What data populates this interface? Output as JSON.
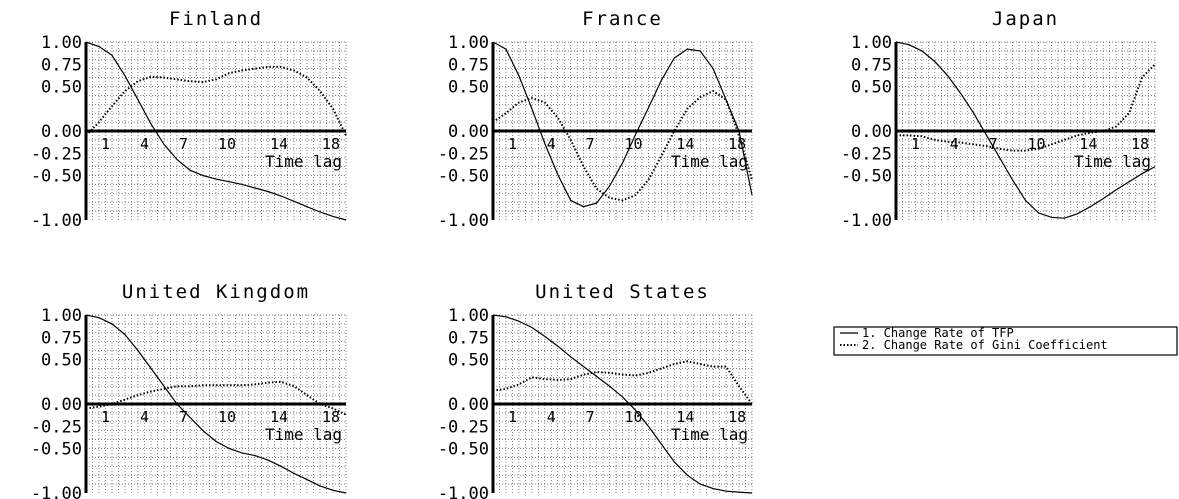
{
  "chart_data": [
    {
      "type": "line",
      "title": "Finland",
      "xlabel": "Time lag",
      "xticks": [
        "1",
        "4",
        "7",
        "10",
        "14",
        "18"
      ],
      "yticks": [
        "1.00",
        "0.75",
        "0.50",
        "0.00",
        "-0.25",
        "-0.50",
        "-1.00"
      ],
      "xlim": [
        0,
        20
      ],
      "ylim": [
        -1.0,
        1.0
      ],
      "grid": true,
      "x": [
        0,
        1,
        2,
        3,
        4,
        5,
        6,
        7,
        8,
        9,
        10,
        11,
        12,
        13,
        14,
        15,
        16,
        17,
        18,
        19,
        20
      ],
      "series": [
        {
          "name": "1. Change Rate of TFP",
          "style": "solid",
          "values": [
            1.0,
            0.95,
            0.85,
            0.62,
            0.35,
            0.08,
            -0.15,
            -0.32,
            -0.44,
            -0.5,
            -0.54,
            -0.57,
            -0.6,
            -0.64,
            -0.68,
            -0.73,
            -0.79,
            -0.85,
            -0.91,
            -0.96,
            -1.0
          ]
        },
        {
          "name": "2. Change Rate of Gini Coefficient",
          "style": "dotted",
          "values": [
            -0.05,
            0.1,
            0.28,
            0.45,
            0.56,
            0.61,
            0.6,
            0.58,
            0.56,
            0.55,
            0.58,
            0.65,
            0.68,
            0.7,
            0.72,
            0.72,
            0.68,
            0.6,
            0.45,
            0.25,
            -0.05
          ]
        }
      ]
    },
    {
      "type": "line",
      "title": "France",
      "xlabel": "Time lag",
      "xticks": [
        "1",
        "4",
        "7",
        "10",
        "14",
        "18"
      ],
      "yticks": [
        "1.00",
        "0.75",
        "0.50",
        "0.00",
        "-0.25",
        "-0.50",
        "-1.00"
      ],
      "xlim": [
        0,
        20
      ],
      "ylim": [
        -1.0,
        1.0
      ],
      "grid": true,
      "x": [
        0,
        1,
        2,
        3,
        4,
        5,
        6,
        7,
        8,
        9,
        10,
        11,
        12,
        13,
        14,
        15,
        16,
        17,
        18,
        19,
        20
      ],
      "series": [
        {
          "name": "1. Change Rate of TFP",
          "style": "solid",
          "values": [
            1.0,
            0.92,
            0.62,
            0.25,
            -0.14,
            -0.49,
            -0.78,
            -0.85,
            -0.81,
            -0.62,
            -0.36,
            -0.04,
            0.26,
            0.57,
            0.82,
            0.92,
            0.9,
            0.7,
            0.35,
            0.0,
            -0.72
          ]
        },
        {
          "name": "2. Change Rate of Gini Coefficient",
          "style": "dotted",
          "values": [
            0.1,
            0.2,
            0.32,
            0.37,
            0.32,
            0.15,
            -0.1,
            -0.4,
            -0.65,
            -0.75,
            -0.78,
            -0.72,
            -0.55,
            -0.28,
            0.0,
            0.25,
            0.38,
            0.45,
            0.35,
            -0.05,
            -0.55
          ]
        }
      ]
    },
    {
      "type": "line",
      "title": "Japan",
      "xlabel": "Time lag",
      "xticks": [
        "1",
        "4",
        "7",
        "10",
        "14",
        "18"
      ],
      "yticks": [
        "1.00",
        "0.75",
        "0.50",
        "0.00",
        "-0.25",
        "-0.50",
        "-1.00"
      ],
      "xlim": [
        0,
        20
      ],
      "ylim": [
        -1.0,
        1.0
      ],
      "grid": true,
      "x": [
        0,
        1,
        2,
        3,
        4,
        5,
        6,
        7,
        8,
        9,
        10,
        11,
        12,
        13,
        14,
        15,
        16,
        17,
        18,
        19,
        20
      ],
      "series": [
        {
          "name": "1. Change Rate of TFP",
          "style": "solid",
          "values": [
            1.0,
            0.97,
            0.9,
            0.78,
            0.62,
            0.42,
            0.2,
            -0.05,
            -0.3,
            -0.55,
            -0.78,
            -0.92,
            -0.97,
            -0.98,
            -0.93,
            -0.85,
            -0.76,
            -0.66,
            -0.57,
            -0.48,
            -0.4
          ]
        },
        {
          "name": "2. Change Rate of Gini Coefficient",
          "style": "dotted",
          "values": [
            -0.05,
            -0.05,
            -0.06,
            -0.1,
            -0.12,
            -0.13,
            -0.15,
            -0.17,
            -0.2,
            -0.22,
            -0.22,
            -0.2,
            -0.15,
            -0.1,
            -0.05,
            -0.02,
            0.0,
            0.05,
            0.2,
            0.6,
            0.75
          ]
        }
      ]
    },
    {
      "type": "line",
      "title": "United Kingdom",
      "xlabel": "Time lag",
      "xticks": [
        "1",
        "4",
        "7",
        "10",
        "14",
        "18"
      ],
      "yticks": [
        "1.00",
        "0.75",
        "0.50",
        "0.00",
        "-0.25",
        "-0.50",
        "-1.00"
      ],
      "xlim": [
        0,
        20
      ],
      "ylim": [
        -1.0,
        1.0
      ],
      "grid": true,
      "x": [
        0,
        1,
        2,
        3,
        4,
        5,
        6,
        7,
        8,
        9,
        10,
        11,
        12,
        13,
        14,
        15,
        16,
        17,
        18,
        19,
        20
      ],
      "series": [
        {
          "name": "1. Change Rate of TFP",
          "style": "solid",
          "values": [
            1.0,
            0.97,
            0.9,
            0.78,
            0.6,
            0.4,
            0.2,
            0.0,
            -0.15,
            -0.3,
            -0.42,
            -0.5,
            -0.55,
            -0.58,
            -0.63,
            -0.7,
            -0.78,
            -0.85,
            -0.92,
            -0.97,
            -1.0
          ]
        },
        {
          "name": "2. Change Rate of Gini Coefficient",
          "style": "dotted",
          "values": [
            -0.05,
            -0.03,
            0.0,
            0.05,
            0.1,
            0.14,
            0.17,
            0.2,
            0.2,
            0.21,
            0.21,
            0.21,
            0.21,
            0.22,
            0.24,
            0.25,
            0.2,
            0.1,
            0.0,
            -0.05,
            -0.12
          ]
        }
      ]
    },
    {
      "type": "line",
      "title": "United States",
      "xlabel": "Time lag",
      "xticks": [
        "1",
        "4",
        "7",
        "10",
        "14",
        "18"
      ],
      "yticks": [
        "1.00",
        "0.75",
        "0.50",
        "0.00",
        "-0.25",
        "-0.50",
        "-1.00"
      ],
      "xlim": [
        0,
        20
      ],
      "ylim": [
        -1.0,
        1.0
      ],
      "grid": true,
      "x": [
        0,
        1,
        2,
        3,
        4,
        5,
        6,
        7,
        8,
        9,
        10,
        11,
        12,
        13,
        14,
        15,
        16,
        17,
        18,
        19,
        20
      ],
      "series": [
        {
          "name": "1. Change Rate of TFP",
          "style": "solid",
          "values": [
            1.0,
            0.98,
            0.93,
            0.86,
            0.76,
            0.65,
            0.53,
            0.42,
            0.31,
            0.2,
            0.08,
            -0.07,
            -0.25,
            -0.45,
            -0.65,
            -0.8,
            -0.9,
            -0.95,
            -0.98,
            -0.99,
            -1.0
          ]
        },
        {
          "name": "2. Change Rate of Gini Coefficient",
          "style": "dotted",
          "values": [
            0.15,
            0.17,
            0.22,
            0.3,
            0.28,
            0.27,
            0.28,
            0.33,
            0.36,
            0.35,
            0.33,
            0.32,
            0.35,
            0.4,
            0.45,
            0.48,
            0.45,
            0.42,
            0.42,
            0.2,
            0.0
          ]
        }
      ]
    }
  ],
  "legend": {
    "items": [
      {
        "label": "1. Change Rate of TFP",
        "style": "solid"
      },
      {
        "label": "2. Change Rate of Gini Coefficient",
        "style": "dotted"
      }
    ]
  }
}
